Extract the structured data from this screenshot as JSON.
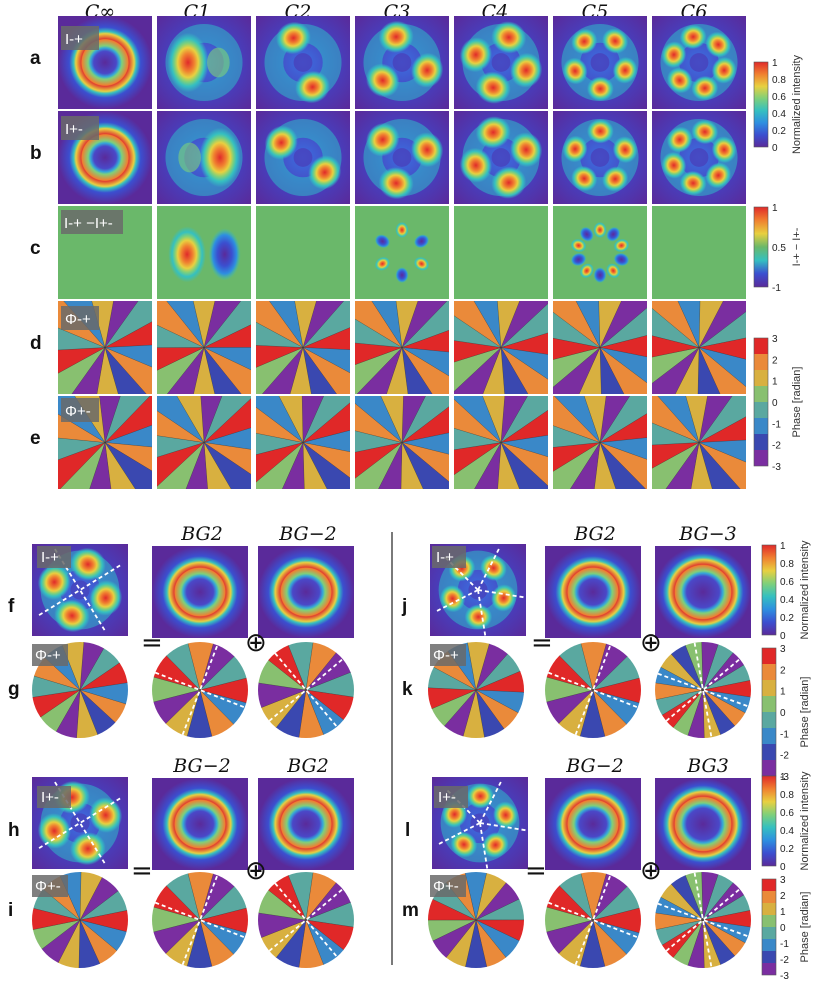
{
  "top_columns": [
    "C∞",
    "C1",
    "C2",
    "C3",
    "C4",
    "C5",
    "C6"
  ],
  "top_orders": [
    0,
    1,
    2,
    3,
    4,
    5,
    6
  ],
  "top_rows": [
    {
      "label": "a",
      "tag": "I-+",
      "kind": "intensity",
      "sign": 1
    },
    {
      "label": "b",
      "tag": "I+-",
      "kind": "intensity",
      "sign": -1
    },
    {
      "label": "c",
      "tag": "I-+ −I+-",
      "kind": "difference",
      "sign": 1
    },
    {
      "label": "d",
      "tag": "Φ-+",
      "kind": "phase",
      "sign": 1
    },
    {
      "label": "e",
      "tag": "Φ+-",
      "kind": "phase",
      "sign": -1
    }
  ],
  "colorbars": {
    "intensity": {
      "title": "Normalized intensity",
      "ticks": [
        "1",
        "0.8",
        "0.6",
        "0.4",
        "0.2",
        "0"
      ]
    },
    "difference": {
      "title": "I-+ − I+-",
      "ticks": [
        "1",
        "0.5",
        "-1"
      ]
    },
    "phase": {
      "title": "Phase [radian]",
      "ticks": [
        "3",
        "2",
        "1",
        "0",
        "-1",
        "-2",
        "-3"
      ]
    }
  },
  "groups": [
    {
      "int_label": "f",
      "phase_label": "g",
      "int_tag": "I-+",
      "phase_tag": "Φ-+",
      "n": 4,
      "titles": [
        "BG2",
        "BG−2"
      ],
      "orders": [
        2,
        -2
      ]
    },
    {
      "int_label": "j",
      "phase_label": "k",
      "int_tag": "I-+",
      "phase_tag": "Φ-+",
      "n": 5,
      "titles": [
        "BG2",
        "BG−3"
      ],
      "orders": [
        2,
        -3
      ]
    },
    {
      "int_label": "h",
      "phase_label": "i",
      "int_tag": "I+-",
      "phase_tag": "Φ+-",
      "n": 4,
      "titles": [
        "BG−2",
        "BG2"
      ],
      "orders": [
        -2,
        2
      ]
    },
    {
      "int_label": "l",
      "phase_label": "m",
      "int_tag": "I+-",
      "phase_tag": "Φ+-",
      "n": 5,
      "titles": [
        "BG−2",
        "BG3"
      ],
      "orders": [
        -2,
        3
      ]
    }
  ],
  "operators": {
    "equals": "=",
    "plus": "⊕"
  },
  "colors": {
    "intensity_map": [
      "#5a2a9a",
      "#3b4fd0",
      "#2e8fe0",
      "#35c0c0",
      "#7fd07a",
      "#e8d040",
      "#f08030",
      "#e02a2a"
    ],
    "phase_levels": [
      "#7a2ea0",
      "#3a48b0",
      "#3a88c8",
      "#5aa8a0",
      "#88c070",
      "#d8b040",
      "#ea8a3a",
      "#e02828"
    ],
    "difference_mid": "#6ab86a",
    "dash": "#ffffff"
  }
}
